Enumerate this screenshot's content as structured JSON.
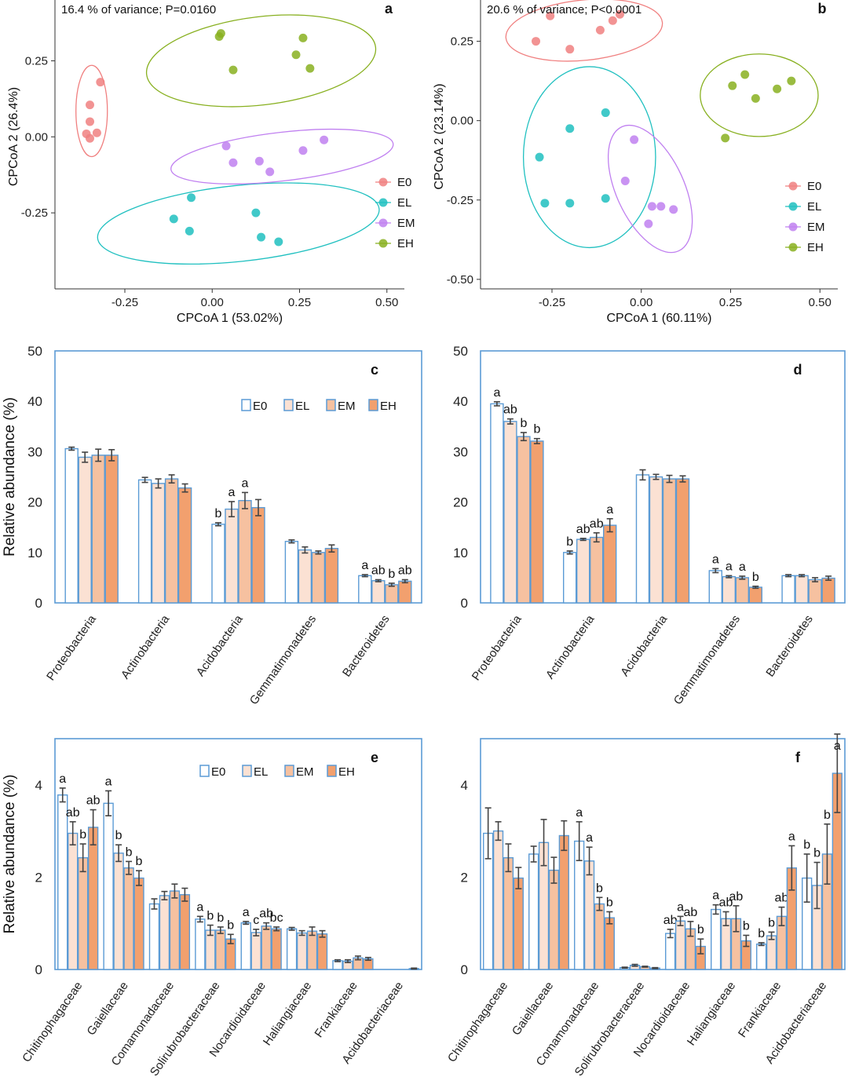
{
  "colors": {
    "E0": "#F08080",
    "EL": "#20C0C0",
    "EM": "#C080F0",
    "EH": "#88B020",
    "bar_E0": "#FFFFFF",
    "bar_EL": "#FBE1D3",
    "bar_EM": "#F6C1A0",
    "bar_EH": "#F2A06E",
    "frame": "#5B9BD5"
  },
  "chart_data": [
    {
      "panel": "a",
      "type": "scatter",
      "annotation": "16.4 % of variance; P=0.0160",
      "xlabel": "CPCoA 1 (53.02%)",
      "ylabel": "CPCoA 2 (26.4%)",
      "xlim": [
        -0.45,
        0.55
      ],
      "ylim": [
        -0.5,
        0.45
      ],
      "xticks": [
        "-0.25",
        "0.00",
        "0.25",
        "0.50"
      ],
      "yticks": [
        "-0.25",
        "0.00",
        "0.25"
      ],
      "legend": [
        "E0",
        "EL",
        "EM",
        "EH"
      ],
      "series": [
        {
          "name": "E0",
          "points": [
            [
              -0.32,
              0.18
            ],
            [
              -0.35,
              0.105
            ],
            [
              -0.35,
              0.05
            ],
            [
              -0.33,
              0.013
            ],
            [
              -0.36,
              0.01
            ],
            [
              -0.35,
              -0.005
            ]
          ],
          "ellipse": {
            "cx": -0.345,
            "cy": 0.085,
            "rx": 0.045,
            "ry": 0.15,
            "angle": 0
          }
        },
        {
          "name": "EL",
          "points": [
            [
              -0.06,
              -0.2
            ],
            [
              -0.11,
              -0.27
            ],
            [
              -0.065,
              -0.31
            ],
            [
              0.125,
              -0.25
            ],
            [
              0.14,
              -0.33
            ],
            [
              0.19,
              -0.345
            ]
          ],
          "ellipse": {
            "cx": 0.075,
            "cy": -0.285,
            "rx": 0.405,
            "ry": 0.125,
            "angle": -0.105
          }
        },
        {
          "name": "EM",
          "points": [
            [
              0.04,
              -0.03
            ],
            [
              0.06,
              -0.085
            ],
            [
              0.135,
              -0.08
            ],
            [
              0.165,
              -0.115
            ],
            [
              0.26,
              -0.045
            ],
            [
              0.32,
              -0.01
            ]
          ],
          "ellipse": {
            "cx": 0.2,
            "cy": -0.065,
            "rx": 0.32,
            "ry": 0.08,
            "angle": -0.115
          }
        },
        {
          "name": "EH",
          "points": [
            [
              0.02,
              0.33
            ],
            [
              0.025,
              0.34
            ],
            [
              0.06,
              0.22
            ],
            [
              0.24,
              0.27
            ],
            [
              0.26,
              0.325
            ],
            [
              0.28,
              0.225
            ]
          ],
          "ellipse": {
            "cx": 0.14,
            "cy": 0.25,
            "rx": 0.33,
            "ry": 0.145,
            "angle": -0.12
          }
        }
      ]
    },
    {
      "panel": "b",
      "type": "scatter",
      "annotation": "20.6 % of variance; P<0.0001",
      "xlabel": "CPCoA 1 (60.11%)",
      "ylabel": "CPCoA 2 (23.14%)",
      "xlim": [
        -0.45,
        0.55
      ],
      "ylim": [
        -0.53,
        0.38
      ],
      "xticks": [
        "-0.25",
        "0.00",
        "0.25",
        "0.50"
      ],
      "yticks": [
        "-0.50",
        "-0.25",
        "0.00",
        "0.25"
      ],
      "legend": [
        "E0",
        "EL",
        "EM",
        "EH"
      ],
      "series": [
        {
          "name": "E0",
          "points": [
            [
              -0.295,
              0.25
            ],
            [
              -0.255,
              0.33
            ],
            [
              -0.2,
              0.225
            ],
            [
              -0.115,
              0.285
            ],
            [
              -0.08,
              0.315
            ],
            [
              -0.06,
              0.335
            ]
          ],
          "ellipse": {
            "cx": -0.16,
            "cy": 0.285,
            "rx": 0.22,
            "ry": 0.095,
            "angle": -0.1
          }
        },
        {
          "name": "EL",
          "points": [
            [
              -0.1,
              0.025
            ],
            [
              -0.2,
              -0.025
            ],
            [
              -0.285,
              -0.115
            ],
            [
              -0.27,
              -0.26
            ],
            [
              -0.2,
              -0.26
            ],
            [
              -0.1,
              -0.245
            ]
          ],
          "ellipse": {
            "cx": -0.145,
            "cy": -0.115,
            "rx": 0.185,
            "ry": 0.285,
            "angle": 0
          }
        },
        {
          "name": "EM",
          "points": [
            [
              -0.02,
              -0.06
            ],
            [
              -0.045,
              -0.19
            ],
            [
              0.03,
              -0.27
            ],
            [
              0.055,
              -0.27
            ],
            [
              0.09,
              -0.28
            ],
            [
              0.02,
              -0.325
            ]
          ],
          "ellipse": {
            "cx": 0.025,
            "cy": -0.215,
            "rx": 0.095,
            "ry": 0.215,
            "angle": -0.46
          }
        },
        {
          "name": "EH",
          "points": [
            [
              0.235,
              -0.055
            ],
            [
              0.255,
              0.11
            ],
            [
              0.29,
              0.145
            ],
            [
              0.32,
              0.07
            ],
            [
              0.38,
              0.1
            ],
            [
              0.42,
              0.125
            ]
          ],
          "ellipse": {
            "cx": 0.33,
            "cy": 0.08,
            "rx": 0.165,
            "ry": 0.13,
            "angle": 0
          }
        }
      ]
    },
    {
      "panel": "c",
      "type": "bar",
      "ylabel": "Relative abundance (%)",
      "ylim": [
        0,
        50
      ],
      "yticks": [
        "0",
        "10",
        "20",
        "30",
        "40",
        "50"
      ],
      "legend": [
        "E0",
        "EL",
        "EM",
        "EH"
      ],
      "categories": [
        "Proteobacteria",
        "Actinobacteria",
        "Acidobacteria",
        "Gemmatimonadetes",
        "Bacteroidetes"
      ],
      "series": [
        {
          "name": "E0",
          "values": [
            30.6,
            24.4,
            15.6,
            12.2,
            5.4
          ],
          "errors": [
            0.3,
            0.5,
            0.3,
            0.3,
            0.2
          ]
        },
        {
          "name": "EL",
          "values": [
            28.9,
            23.7,
            18.6,
            10.5,
            4.4
          ],
          "errors": [
            1.0,
            0.9,
            1.5,
            0.6,
            0.2
          ]
        },
        {
          "name": "EM",
          "values": [
            29.3,
            24.6,
            20.3,
            10.0,
            3.6
          ],
          "errors": [
            1.2,
            0.8,
            1.6,
            0.3,
            0.3
          ]
        },
        {
          "name": "EH",
          "values": [
            29.3,
            22.8,
            18.9,
            10.8,
            4.3
          ],
          "errors": [
            1.1,
            0.8,
            1.6,
            0.7,
            0.3
          ]
        }
      ],
      "significance": [
        [
          [
            "",
            "",
            "",
            ""
          ],
          [
            "",
            "",
            "",
            ""
          ],
          [
            "b",
            "a",
            "a",
            ""
          ],
          [
            "",
            "",
            "",
            ""
          ],
          [
            "a",
            "ab",
            "b",
            "ab"
          ]
        ]
      ]
    },
    {
      "panel": "d",
      "type": "bar",
      "ylim": [
        0,
        50
      ],
      "yticks": [
        "0",
        "10",
        "20",
        "30",
        "40",
        "50"
      ],
      "categories": [
        "Proteobacteria",
        "Actinobacteria",
        "Acidobacteria",
        "Gemmatimonadetes",
        "Bacteroidetes"
      ],
      "series": [
        {
          "name": "E0",
          "values": [
            39.5,
            10.0,
            25.4,
            6.4,
            5.4
          ],
          "errors": [
            0.4,
            0.3,
            1.0,
            0.4,
            0.2
          ]
        },
        {
          "name": "EL",
          "values": [
            36.0,
            12.6,
            25.0,
            5.2,
            5.4
          ],
          "errors": [
            0.5,
            0.2,
            0.5,
            0.2,
            0.2
          ]
        },
        {
          "name": "EM",
          "values": [
            33.0,
            13.0,
            24.6,
            5.0,
            4.6
          ],
          "errors": [
            0.8,
            0.9,
            0.7,
            0.3,
            0.4
          ]
        },
        {
          "name": "EH",
          "values": [
            32.1,
            15.4,
            24.6,
            3.1,
            4.9
          ],
          "errors": [
            0.5,
            1.3,
            0.6,
            0.2,
            0.4
          ]
        }
      ],
      "significance": [
        [
          [
            "a",
            "ab",
            "b",
            "b"
          ],
          [
            "b",
            "ab",
            "ab",
            "a"
          ],
          [
            "",
            "",
            "",
            ""
          ],
          [
            "a",
            "a",
            "a",
            "b"
          ],
          [
            "",
            "",
            "",
            ""
          ]
        ]
      ]
    },
    {
      "panel": "e",
      "type": "bar",
      "ylabel": "Relative abundance (%)",
      "ylim": [
        0,
        5
      ],
      "yticks": [
        "0",
        "2",
        "4"
      ],
      "legend": [
        "E0",
        "EL",
        "EM",
        "EH"
      ],
      "categories": [
        "Chitinophagaceae",
        "Gaiellaceae",
        "Comamonadaceae",
        "Solirubrobacteraceae",
        "Nocardioidaceae",
        "Haliangiaceae",
        "Frankiaceae",
        "Acidobacteriaceae"
      ],
      "series": [
        {
          "name": "E0",
          "values": [
            3.78,
            3.6,
            1.42,
            1.09,
            1.01,
            0.88,
            0.19,
            0.0
          ],
          "errors": [
            0.15,
            0.27,
            0.11,
            0.06,
            0.03,
            0.03,
            0.02,
            0.0
          ]
        },
        {
          "name": "EL",
          "values": [
            2.95,
            2.52,
            1.6,
            0.85,
            0.8,
            0.79,
            0.18,
            0.0
          ],
          "errors": [
            0.25,
            0.18,
            0.09,
            0.11,
            0.07,
            0.05,
            0.03,
            0.0
          ]
        },
        {
          "name": "EM",
          "values": [
            2.42,
            2.2,
            1.7,
            0.85,
            0.94,
            0.83,
            0.25,
            0.0
          ],
          "errors": [
            0.3,
            0.14,
            0.15,
            0.07,
            0.07,
            0.09,
            0.04,
            0.0
          ]
        },
        {
          "name": "EH",
          "values": [
            3.08,
            1.98,
            1.62,
            0.66,
            0.88,
            0.77,
            0.23,
            0.02
          ],
          "errors": [
            0.38,
            0.16,
            0.14,
            0.1,
            0.04,
            0.07,
            0.03,
            0.01
          ]
        }
      ],
      "significance": [
        [
          [
            "a",
            "ab",
            "b",
            "ab"
          ],
          [
            "a",
            "b",
            "b",
            "b"
          ],
          [
            "",
            "",
            "",
            ""
          ],
          [
            "a",
            "b",
            "b",
            "b"
          ],
          [
            "a",
            "c",
            "ab",
            "bc"
          ],
          [
            "",
            "",
            "",
            ""
          ],
          [
            "",
            "",
            "",
            ""
          ],
          [
            "",
            "",
            "",
            ""
          ]
        ]
      ]
    },
    {
      "panel": "f",
      "type": "bar",
      "ylim": [
        0,
        5
      ],
      "yticks": [
        "0",
        "2",
        "4"
      ],
      "categories": [
        "Chitinophagaceae",
        "Gaiellaceae",
        "Comamonadaceae",
        "Solirubrobacteraceae",
        "Nocardioidaceae",
        "Haliangiaceae",
        "Frankiaceae",
        "Acidobacteriaceae"
      ],
      "series": [
        {
          "name": "E0",
          "values": [
            2.95,
            2.5,
            2.78,
            0.04,
            0.78,
            1.3,
            0.55,
            1.98
          ],
          "errors": [
            0.55,
            0.17,
            0.42,
            0.01,
            0.09,
            0.1,
            0.03,
            0.52
          ]
        },
        {
          "name": "EL",
          "values": [
            3.0,
            2.75,
            2.35,
            0.09,
            1.05,
            1.1,
            0.73,
            1.82
          ],
          "errors": [
            0.2,
            0.5,
            0.3,
            0.02,
            0.1,
            0.15,
            0.08,
            0.5
          ]
        },
        {
          "name": "EM",
          "values": [
            2.42,
            2.15,
            1.42,
            0.06,
            0.88,
            1.1,
            1.15,
            2.5
          ],
          "errors": [
            0.3,
            0.28,
            0.14,
            0.01,
            0.16,
            0.28,
            0.2,
            0.65
          ]
        },
        {
          "name": "EH",
          "values": [
            1.98,
            2.9,
            1.12,
            0.03,
            0.5,
            0.62,
            2.2,
            4.25
          ],
          "errors": [
            0.23,
            0.32,
            0.13,
            0.01,
            0.16,
            0.12,
            0.48,
            0.85
          ]
        }
      ],
      "significance": [
        [
          [
            "",
            "",
            "",
            ""
          ],
          [
            "",
            "",
            "",
            ""
          ],
          [
            "a",
            "a",
            "b",
            "b"
          ],
          [
            "",
            "",
            "",
            ""
          ],
          [
            "ab",
            "a",
            "ab",
            "b"
          ],
          [
            "a",
            "ab",
            "ab",
            "b"
          ],
          [
            "b",
            "b",
            "ab",
            "a"
          ],
          [
            "b",
            "b",
            "b",
            "a"
          ]
        ]
      ]
    }
  ]
}
